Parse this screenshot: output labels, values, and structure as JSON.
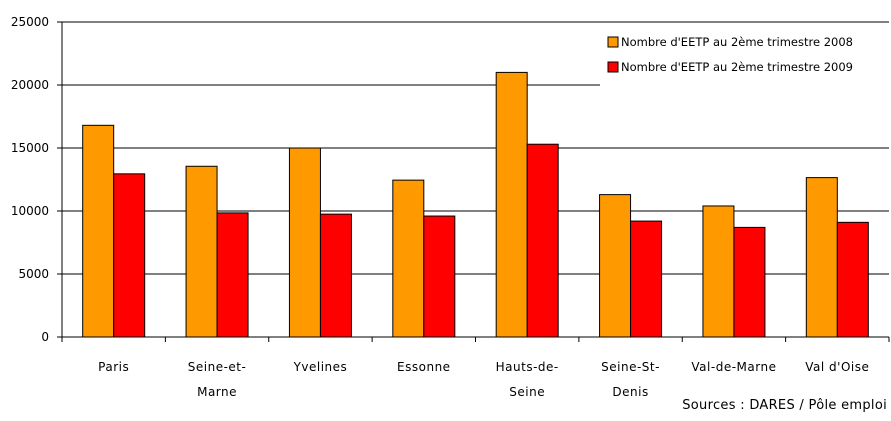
{
  "chart_data": {
    "type": "bar",
    "categories": [
      [
        "Paris"
      ],
      [
        "Seine-et-",
        "Marne"
      ],
      [
        "Yvelines"
      ],
      [
        "Essonne"
      ],
      [
        "Hauts-de-",
        "Seine"
      ],
      [
        "Seine-St-",
        "Denis"
      ],
      [
        "Val-de-Marne"
      ],
      [
        "Val d'Oise"
      ]
    ],
    "series": [
      {
        "name": "Nombre d'EETP au 2ème trimestre 2008",
        "color": "#FF9900",
        "values": [
          16800,
          13550,
          15000,
          12450,
          21000,
          11300,
          10400,
          12650
        ]
      },
      {
        "name": "Nombre d'EETP au 2ème trimestre 2009",
        "color": "#FF0000",
        "values": [
          12950,
          9850,
          9750,
          9600,
          15300,
          9200,
          8700,
          9100
        ]
      }
    ],
    "ylim": [
      0,
      25000
    ],
    "yticks": [
      0,
      5000,
      10000,
      15000,
      20000,
      25000
    ],
    "grid": true,
    "legend": "top-right",
    "xlabel": "",
    "ylabel": ""
  },
  "source": "Sources : DARES / Pôle emploi"
}
